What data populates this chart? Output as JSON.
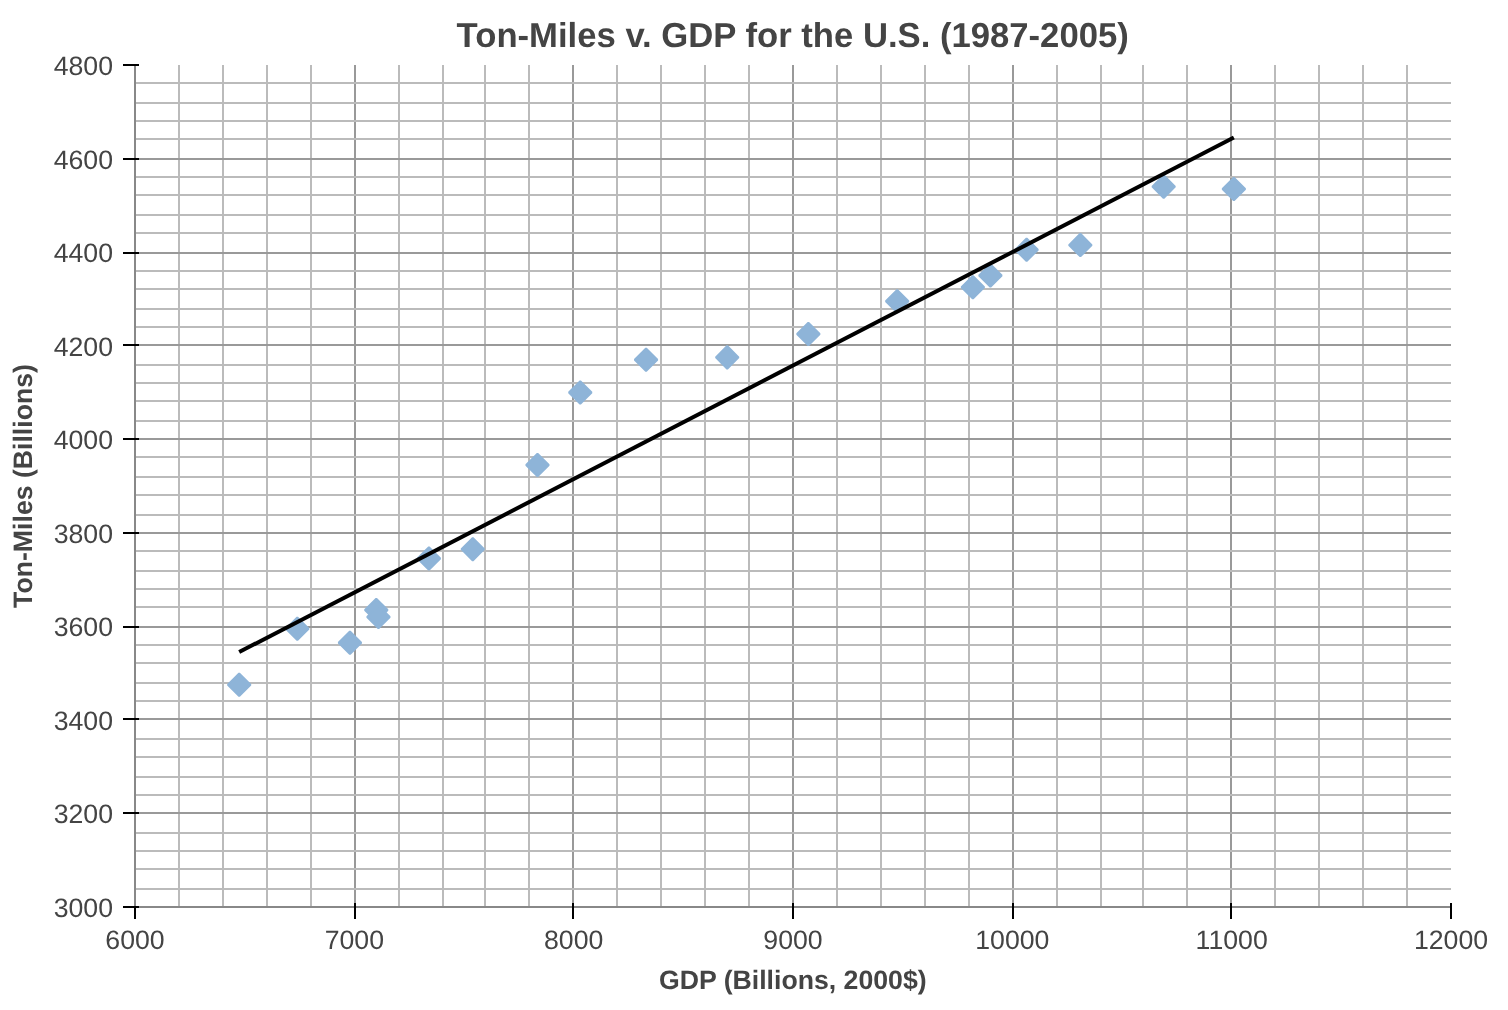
{
  "chart_data": {
    "type": "scatter",
    "title": "Ton-Miles v. GDP for the U.S. (1987-2005)",
    "xlabel": "GDP (Billions, 2000$)",
    "ylabel": "Ton-Miles (Billions)",
    "xlim": [
      6000,
      12000
    ],
    "xticks": [
      6000,
      7000,
      8000,
      9000,
      10000,
      11000,
      12000
    ],
    "ylim": [
      3000,
      4800
    ],
    "yticks": [
      3000,
      3200,
      3400,
      3600,
      3800,
      4000,
      4200,
      4400,
      4600,
      4800
    ],
    "grid": true,
    "marker": "diamond",
    "series": [
      {
        "color": "#8eb4d8",
        "x": [
          6475,
          6740,
          6980,
          7100,
          7110,
          7340,
          7540,
          7835,
          8030,
          8330,
          8700,
          9070,
          9475,
          9820,
          9900,
          10065,
          10310,
          10690,
          11010
        ],
        "values": [
          3475,
          3595,
          3565,
          3635,
          3620,
          3745,
          3765,
          3945,
          4100,
          4170,
          4175,
          4225,
          4295,
          4325,
          4350,
          4405,
          4415,
          4540,
          4535
        ]
      },
      {
        "type": "line",
        "color": "#000000",
        "line_style": "solid",
        "marker": "none",
        "x": [
          6475,
          11010
        ],
        "values": [
          3545,
          4645
        ]
      }
    ]
  }
}
